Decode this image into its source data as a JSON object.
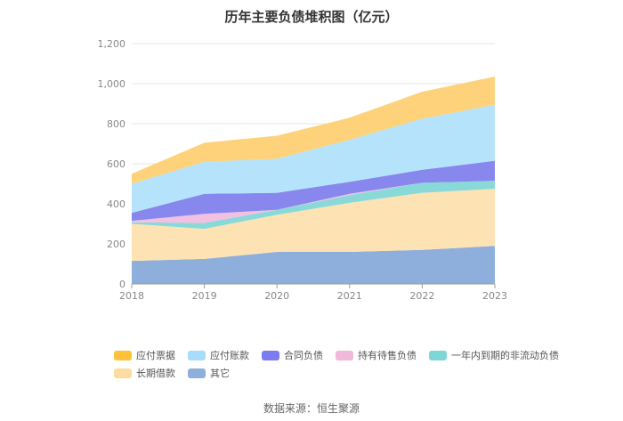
{
  "title": "历年主要负债堆积图（亿元）",
  "source": "数据来源：恒生聚源",
  "chart_data": {
    "type": "area",
    "stacked": true,
    "categories": [
      "2018",
      "2019",
      "2020",
      "2021",
      "2022",
      "2023"
    ],
    "ylim": [
      0,
      1200
    ],
    "yticks": [
      "0",
      "200",
      "400",
      "600",
      "800",
      "1,000",
      "1,200"
    ],
    "ytick_values": [
      0,
      200,
      400,
      600,
      800,
      1000,
      1200
    ],
    "grid": true,
    "legend_position": "bottom",
    "series": [
      {
        "name": "其它",
        "color": "#8eaedb",
        "values": [
          115,
          125,
          160,
          160,
          170,
          190
        ]
      },
      {
        "name": "长期借款",
        "color": "#fde3b4",
        "values": [
          185,
          150,
          185,
          245,
          285,
          285
        ]
      },
      {
        "name": "一年内到期的非流动负债",
        "color": "#8ad9d9",
        "values": [
          8,
          30,
          25,
          38,
          50,
          40
        ]
      },
      {
        "name": "持有待售负债",
        "color": "#f2c0e0",
        "values": [
          7,
          45,
          0,
          7,
          0,
          0
        ]
      },
      {
        "name": "合同负债",
        "color": "#8787ee",
        "values": [
          40,
          100,
          85,
          60,
          65,
          100
        ]
      },
      {
        "name": "应付账款",
        "color": "#b5e3fb",
        "values": [
          145,
          160,
          170,
          210,
          255,
          280
        ]
      },
      {
        "name": "应付票据",
        "color": "#fdd27a",
        "values": [
          50,
          95,
          115,
          110,
          135,
          140
        ]
      }
    ]
  },
  "legend": {
    "row1": [
      "应付票据",
      "应付账款",
      "合同负债",
      "持有待售负债",
      "一年内到期的非流动负债"
    ],
    "row2": [
      "长期借款",
      "其它"
    ],
    "colors": {
      "应付票据": "#fdc239",
      "应付账款": "#a8dcfb",
      "合同负债": "#7b7cf0",
      "持有待售负债": "#f0b8da",
      "一年内到期的非流动负债": "#7fd6d6",
      "长期借款": "#fddca0",
      "其它": "#8eaedb"
    }
  }
}
